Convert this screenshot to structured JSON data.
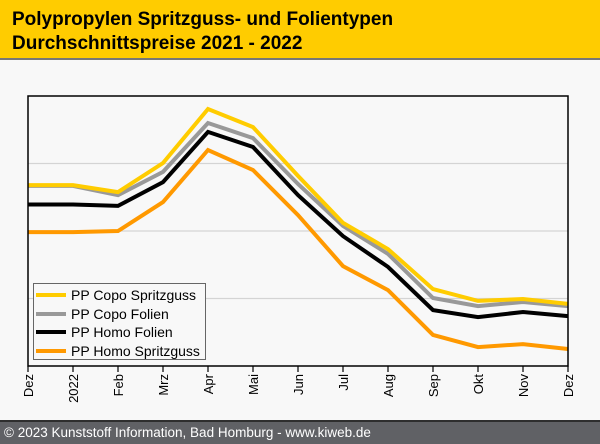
{
  "header": {
    "title_line1": "Polypropylen Spritzguss- und Folientypen",
    "title_line2": "Durchschnittspreise 2021 - 2022"
  },
  "footer": {
    "text": "© 2023 Kunststoff Information, Bad Homburg - www.kiweb.de"
  },
  "chart_data": {
    "type": "line",
    "title": "Polypropylen Spritzguss- und Folientypen Durchschnittspreise 2021 - 2022",
    "xlabel": "",
    "ylabel": "",
    "y_units": "relative index (no y-axis scale shown; 0 = plot bottom, 100 = plot top)",
    "ylim": [
      0,
      100
    ],
    "grid": "horizontal",
    "gridlines_at": [
      25,
      50,
      75
    ],
    "categories": [
      "Dez",
      "2022",
      "Feb",
      "Mrz",
      "Apr",
      "Mai",
      "Jun",
      "Jul",
      "Aug",
      "Sep",
      "Okt",
      "Nov",
      "Dez"
    ],
    "legend_position": "bottom-left",
    "series": [
      {
        "name": "PP Copo Spritzguss",
        "color": "#ffcc00",
        "values": [
          67.0,
          67.0,
          64.4,
          75.2,
          95.2,
          88.5,
          70.4,
          53.0,
          43.3,
          28.5,
          24.1,
          24.8,
          23.0
        ]
      },
      {
        "name": "PP Copo Folien",
        "color": "#999999",
        "values": [
          66.7,
          66.7,
          63.3,
          71.9,
          90.0,
          84.4,
          67.4,
          51.9,
          41.5,
          25.2,
          22.2,
          23.7,
          22.2
        ]
      },
      {
        "name": "PP Homo Folien",
        "color": "#000000",
        "values": [
          59.8,
          59.8,
          59.3,
          68.1,
          86.7,
          81.1,
          63.3,
          48.1,
          36.7,
          20.7,
          18.1,
          20.0,
          18.5
        ]
      },
      {
        "name": "PP Homo Spritzguss",
        "color": "#ff9900",
        "values": [
          49.6,
          49.6,
          50.0,
          60.7,
          80.0,
          72.6,
          55.9,
          37.0,
          28.1,
          11.5,
          7.0,
          8.1,
          6.3
        ]
      }
    ]
  }
}
